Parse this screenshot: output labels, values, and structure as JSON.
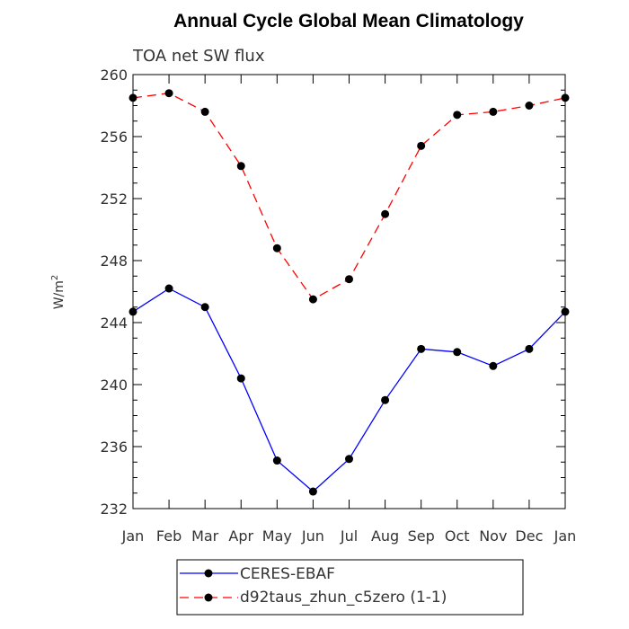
{
  "chart_data": {
    "type": "line",
    "title": "Annual Cycle Global Mean Climatology",
    "subtitle": "TOA net SW flux",
    "ylabel": "W/m",
    "ylabel_sup": "2",
    "xlabel": "",
    "categories": [
      "Jan",
      "Feb",
      "Mar",
      "Apr",
      "May",
      "Jun",
      "Jul",
      "Aug",
      "Sep",
      "Oct",
      "Nov",
      "Dec",
      "Jan"
    ],
    "yticks": [
      232,
      236,
      240,
      244,
      248,
      252,
      256,
      260
    ],
    "ylim": [
      232,
      260
    ],
    "grid": false,
    "legend_position": "bottom",
    "series": [
      {
        "name": "CERES-EBAF",
        "color": "#0000ff",
        "line_style": "solid",
        "marker": "filled-circle",
        "values": [
          244.7,
          246.2,
          245.0,
          240.4,
          235.1,
          233.1,
          235.2,
          239.0,
          242.3,
          242.1,
          241.2,
          242.3,
          244.7
        ]
      },
      {
        "name": "d92taus_zhun_c5zero (1-1)",
        "color": "#ff0000",
        "line_style": "dashed",
        "marker": "filled-circle",
        "values": [
          258.5,
          258.8,
          257.6,
          254.1,
          248.8,
          245.5,
          246.8,
          251.0,
          255.4,
          257.4,
          257.6,
          258.0,
          258.5
        ]
      }
    ]
  }
}
